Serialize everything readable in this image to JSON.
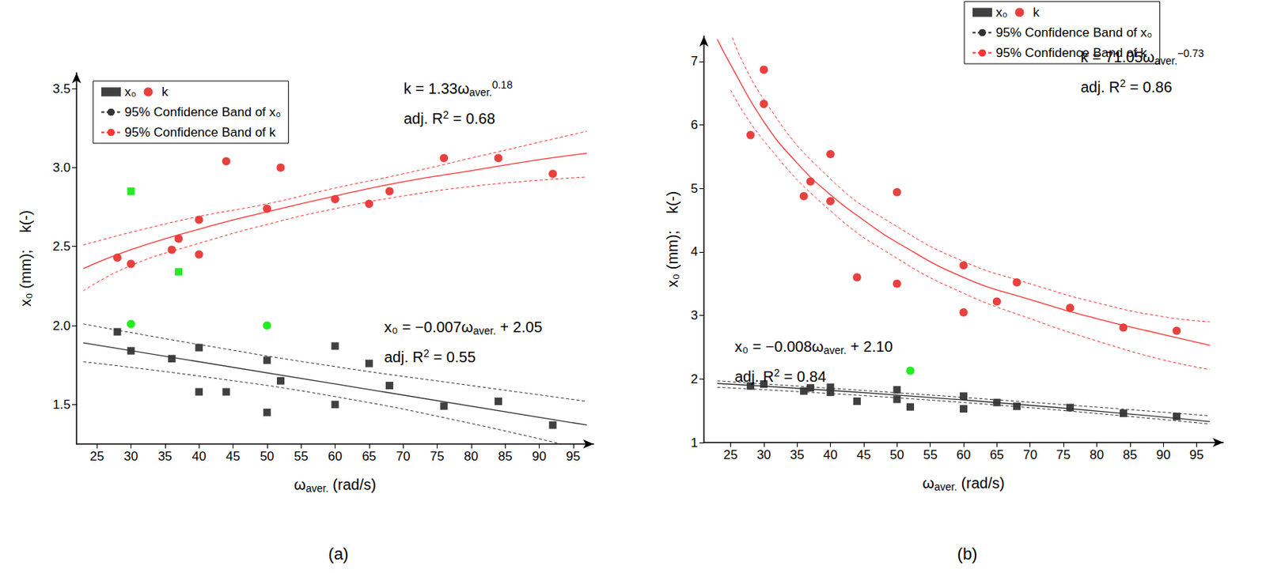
{
  "chart_data": [
    {
      "type": "scatter",
      "title": "(a)",
      "x_label": [
        "ω",
        {
          "sub": "aver."
        },
        " (rad/s)"
      ],
      "y_label": [
        "x₀ (mm);    k(-)"
      ],
      "xlim": [
        22,
        98
      ],
      "xticks": [
        25,
        30,
        35,
        40,
        45,
        50,
        55,
        60,
        65,
        70,
        75,
        80,
        85,
        90,
        95
      ],
      "ylim": [
        1.25,
        3.6
      ],
      "yticks": [
        1.5,
        {
          "value": 2,
          "label": "2.0"
        },
        2.5,
        {
          "value": 3,
          "label": "3.0"
        },
        3.5
      ],
      "grid": false,
      "legend": "upper left",
      "series": [
        {
          "name": "x₀",
          "type": "scatter",
          "color": "#404040",
          "marker": "square",
          "x": [
            28,
            30,
            36,
            40,
            40,
            44,
            50,
            50,
            52,
            60,
            60,
            65,
            68,
            76,
            84,
            92
          ],
          "values": [
            1.96,
            1.84,
            1.79,
            1.86,
            1.58,
            1.58,
            1.78,
            1.45,
            1.65,
            1.87,
            1.5,
            1.76,
            1.62,
            1.49,
            1.52,
            1.37
          ]
        },
        {
          "name": "k",
          "type": "scatter",
          "color": "#e8413f",
          "marker": "circle",
          "x": [
            28,
            30,
            36,
            37,
            40,
            40,
            44,
            50,
            52,
            60,
            65,
            68,
            76,
            84,
            92
          ],
          "values": [
            2.43,
            2.39,
            2.48,
            2.55,
            2.67,
            2.45,
            3.04,
            2.74,
            3.0,
            2.8,
            2.77,
            2.85,
            3.06,
            3.06,
            2.96
          ]
        },
        {
          "type": "scatter",
          "color": "#22ee22",
          "marker": "square",
          "x": [
            30,
            37
          ],
          "values": [
            2.85,
            2.34
          ]
        },
        {
          "type": "scatter",
          "color": "#22ee22",
          "marker": "circle",
          "x": [
            30,
            50
          ],
          "values": [
            2.01,
            2.0
          ]
        },
        {
          "type": "line",
          "color": "#333333",
          "line_style": "solid",
          "x": [
            23,
            60,
            97
          ],
          "values": [
            1.89,
            1.63,
            1.37
          ]
        },
        {
          "type": "line",
          "color": "#ff3333",
          "line_style": "solid",
          "x": [
            23,
            30,
            40,
            50,
            60,
            70,
            80,
            90,
            97
          ],
          "values": [
            2.36,
            2.48,
            2.61,
            2.72,
            2.82,
            2.91,
            2.98,
            3.05,
            3.09
          ]
        },
        {
          "name": "95% Confidence Band of x₀",
          "type": "line",
          "color": "#333333",
          "line_style": "dashed",
          "x": [
            23,
            40,
            60,
            80,
            97
          ],
          "upper": [
            2.01,
            1.88,
            1.74,
            1.62,
            1.52
          ],
          "lower": [
            1.77,
            1.68,
            1.55,
            1.38,
            1.21
          ]
        },
        {
          "name": "95% Confidence Band of k",
          "type": "line",
          "color": "#ff3333",
          "line_style": "dashed",
          "x": [
            23,
            30,
            40,
            50,
            60,
            70,
            80,
            90,
            97
          ],
          "upper": [
            2.51,
            2.59,
            2.69,
            2.77,
            2.87,
            2.96,
            3.06,
            3.16,
            3.23
          ],
          "lower": [
            2.22,
            2.38,
            2.52,
            2.64,
            2.74,
            2.82,
            2.88,
            2.92,
            2.94
          ]
        }
      ],
      "annotations": [
        [
          "k = 1.33ω",
          {
            "sub": "aver."
          },
          {
            "sup": "0.18"
          }
        ],
        [
          "adj. R",
          {
            "sup": "2"
          },
          " = 0.68"
        ],
        [
          "x₀ = −0.007ω",
          {
            "sub": "aver."
          },
          " + 2.05"
        ],
        [
          "adj. R",
          {
            "sup": "2"
          },
          " = 0.55"
        ]
      ]
    },
    {
      "type": "scatter",
      "title": "(b)",
      "x_label": [
        "ω",
        {
          "sub": "aver."
        },
        " (rad/s)"
      ],
      "y_label": [
        "x₀ (mm);    k(-)"
      ],
      "xlim": [
        21,
        99
      ],
      "xticks": [
        25,
        30,
        35,
        40,
        45,
        50,
        55,
        60,
        65,
        70,
        75,
        80,
        85,
        90,
        95
      ],
      "ylim": [
        1,
        7.4
      ],
      "yticks": [
        1,
        2,
        3,
        4,
        5,
        6,
        7
      ],
      "grid": false,
      "legend": "upper right",
      "series": [
        {
          "name": "x₀",
          "type": "scatter",
          "color": "#404040",
          "marker": "square",
          "x": [
            28,
            30,
            36,
            37,
            40,
            40,
            44,
            50,
            50,
            52,
            60,
            60,
            65,
            68,
            76,
            84,
            92
          ],
          "values": [
            1.89,
            1.92,
            1.81,
            1.86,
            1.87,
            1.79,
            1.65,
            1.83,
            1.68,
            1.56,
            1.73,
            1.53,
            1.63,
            1.57,
            1.55,
            1.46,
            1.41
          ]
        },
        {
          "name": "k",
          "type": "scatter",
          "color": "#e8413f",
          "marker": "circle",
          "x": [
            28,
            30,
            30,
            36,
            37,
            40,
            40,
            44,
            50,
            50,
            60,
            60,
            65,
            68,
            76,
            84,
            92
          ],
          "values": [
            5.84,
            6.87,
            6.33,
            4.88,
            5.11,
            5.54,
            4.8,
            3.6,
            4.94,
            3.5,
            3.79,
            3.05,
            3.22,
            3.52,
            3.12,
            2.81,
            2.76
          ]
        },
        {
          "type": "scatter",
          "color": "#22ee22",
          "marker": "circle",
          "x": [
            52
          ],
          "values": [
            2.13
          ]
        },
        {
          "type": "line",
          "color": "#333333",
          "line_style": "solid",
          "x": [
            23,
            60,
            97
          ],
          "values": [
            1.93,
            1.67,
            1.33
          ]
        },
        {
          "type": "line",
          "color": "#ff3333",
          "line_style": "solid",
          "x": [
            23,
            25,
            30,
            35,
            40,
            45,
            50,
            60,
            70,
            80,
            90,
            97
          ],
          "values": [
            7.35,
            6.95,
            6.05,
            5.4,
            4.9,
            4.5,
            4.15,
            3.6,
            3.25,
            2.95,
            2.7,
            2.53
          ]
        },
        {
          "name": "95% Confidence Band of x₀",
          "type": "line",
          "color": "#333333",
          "line_style": "dashed",
          "x": [
            23,
            60,
            97
          ],
          "upper": [
            1.97,
            1.71,
            1.42
          ],
          "lower": [
            1.87,
            1.63,
            1.29
          ]
        },
        {
          "name": "95% Confidence Band of k",
          "type": "line",
          "color": "#ff3333",
          "line_style": "dashed",
          "x": [
            25,
            30,
            40,
            50,
            60,
            70,
            80,
            90,
            97
          ],
          "upper": [
            7.45,
            6.4,
            5.15,
            4.4,
            3.85,
            3.5,
            3.2,
            2.98,
            2.9
          ],
          "lower": [
            6.55,
            5.75,
            4.65,
            3.9,
            3.35,
            2.95,
            2.6,
            2.3,
            2.15
          ]
        }
      ],
      "annotations": [
        [
          "k = 71.05ω",
          {
            "sub": "aver."
          },
          {
            "sup": "−0.73"
          }
        ],
        [
          "adj. R",
          {
            "sup": "2"
          },
          " = 0.86"
        ],
        [
          "x₀ = −0.008ω",
          {
            "sub": "aver."
          },
          " + 2.10"
        ],
        [
          "adj. R",
          {
            "sup": "2"
          },
          " = 0.84"
        ]
      ]
    }
  ]
}
